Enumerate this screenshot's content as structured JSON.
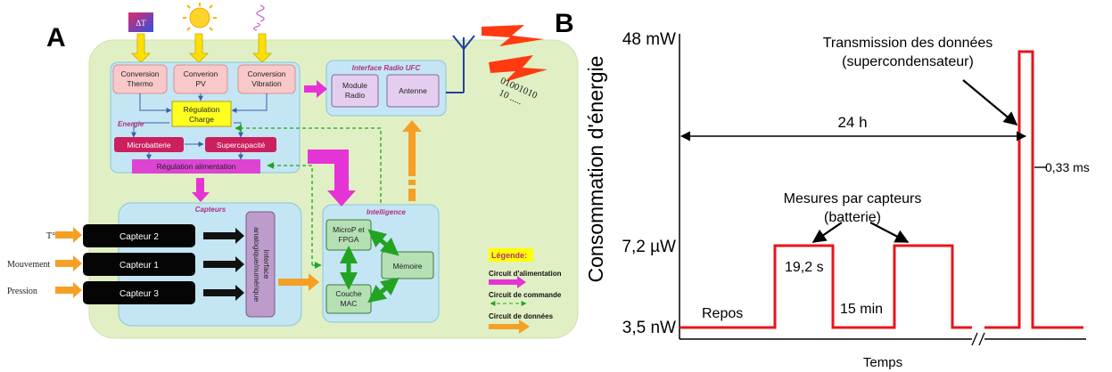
{
  "panel_a": {
    "letter": "A",
    "energy": {
      "thermo": "Conversion\nThermo",
      "pv": "Converion\nPV",
      "vibration": "Conversion\nVibration",
      "delta_t": "ΔT",
      "regulation_charge": "Régulation\nCharge",
      "group_label": "Energie",
      "microbatterie": "Microbatterie",
      "supercapacite": "Supercapacité",
      "regulation_alim": "Régulation alimentation"
    },
    "radio": {
      "title": "Interface Radio UFC",
      "module": "Module\nRadio",
      "antenne": "Antenne"
    },
    "bits": "01001010\n10 .....",
    "capteurs": {
      "title": "Capteurs",
      "c2": "Capteur 2",
      "c1": "Capteur 1",
      "c3": "Capteur 3",
      "interface": "Interface\nanalogique/numérique"
    },
    "inputs": {
      "temp": "T°",
      "mouvement": "Mouvement",
      "pression": "Pression"
    },
    "intelligence": {
      "title": "Intelligence",
      "microp": "MicroP et\nFPGA",
      "memoire": "Mémoire",
      "couche": "Couche\nMAC"
    },
    "legend": {
      "title": "Légende:",
      "alim": "Circuit d'alimentation",
      "commande": "Circuit de commande",
      "donnees": "Circuit de données"
    },
    "colors": {
      "power": "#e633d6",
      "command": "#22a322",
      "data": "#f5a025",
      "board": "#e0f0c4"
    }
  },
  "panel_b": {
    "letter": "B",
    "ylabel": "Consommation d'énergie",
    "xlabel": "Temps",
    "y_ticks": [
      "48 mW",
      "7,2 µW",
      "3,5 nW"
    ],
    "annotations": {
      "transmission": "Transmission des données\n(supercondensateur)",
      "period": "24 h",
      "mesures": "Mesures par capteurs\n(batterie)",
      "pulse_width": "19,2 s",
      "pulse_interval": "15 min",
      "rest": "Repos",
      "tx_width": "0,33 ms"
    },
    "line_color": "#e8141c"
  },
  "chart_data": {
    "type": "line",
    "title": "",
    "xlabel": "Temps",
    "ylabel": "Consommation d'énergie",
    "y_scale": "categorical (not to scale)",
    "y_levels": [
      "3,5 nW",
      "7,2 µW",
      "48 mW"
    ],
    "axis_break": true,
    "series": [
      {
        "points": [
          {
            "phase": "Repos",
            "level": "3,5 nW"
          },
          {
            "phase": "Mesure (19,2 s)",
            "level": "7,2 µW"
          },
          {
            "phase": "Repos (15 min)",
            "level": "3,5 nW"
          },
          {
            "phase": "Mesure",
            "level": "7,2 µW"
          },
          {
            "phase": "Repos",
            "level": "3,5 nW"
          },
          {
            "phase": "Transmission (0,33 ms)",
            "level": "48 mW"
          },
          {
            "phase": "Repos",
            "level": "3,5 nW"
          }
        ]
      }
    ]
  }
}
